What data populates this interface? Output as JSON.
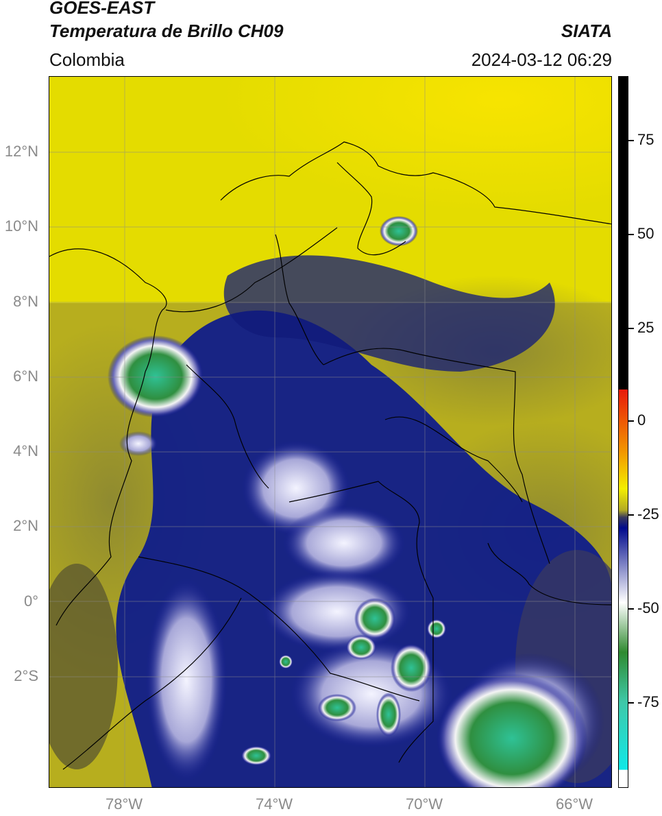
{
  "header": {
    "title_line1": "GOES-EAST",
    "title_line2": "Temperatura de Brillo CH09",
    "region": "Colombia",
    "organization": "SIATA",
    "timestamp": "2024-03-12 06:29"
  },
  "map": {
    "lat_labels": [
      "12°N",
      "10°N",
      "8°N",
      "6°N",
      "4°N",
      "2°N",
      "0°",
      "2°S"
    ],
    "lon_labels": [
      "78°W",
      "74°W",
      "70°W",
      "66°W"
    ]
  },
  "colorbar": {
    "tick_labels": [
      "75",
      "50",
      "25",
      "0",
      "-25",
      "-50",
      "-75"
    ],
    "colors": [
      "#000000",
      "#e8190b",
      "#f39a00",
      "#f3ee00",
      "#b2aa24",
      "#3a3a5c",
      "#000a8c",
      "#ffffff",
      "#2f8a30",
      "#3fc8a8",
      "#10e8e8",
      "#ffffff"
    ]
  }
}
